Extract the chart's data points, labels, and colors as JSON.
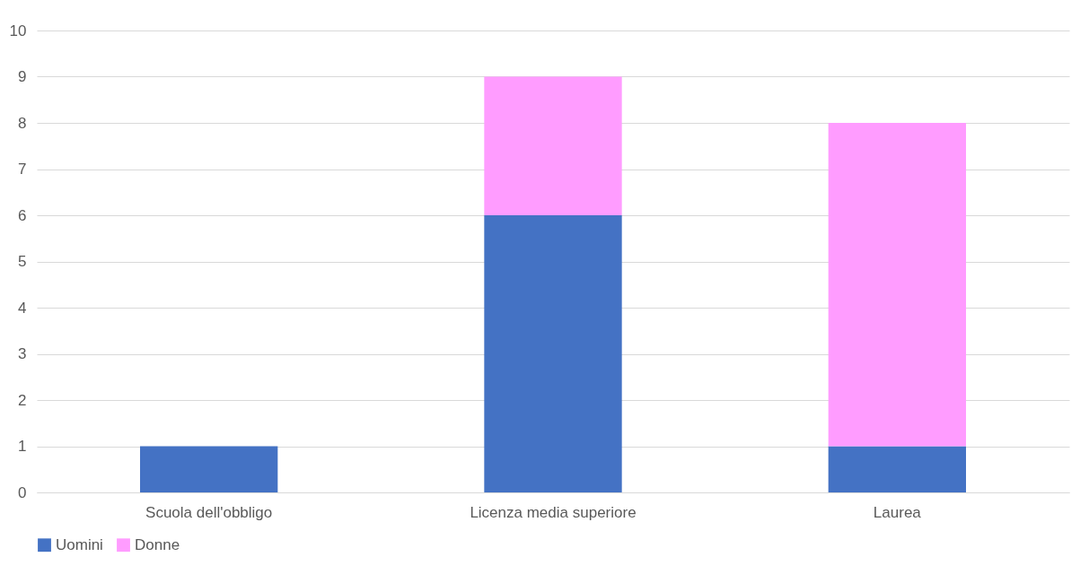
{
  "chart_data": {
    "type": "bar",
    "stacked": true,
    "categories": [
      "Scuola dell'obbligo",
      "Licenza media superiore",
      "Laurea"
    ],
    "series": [
      {
        "name": "Uomini",
        "color": "#4472c4",
        "values": [
          1,
          6,
          1
        ]
      },
      {
        "name": "Donne",
        "color": "#ff9cff",
        "values": [
          0,
          3,
          7
        ]
      }
    ],
    "ylim": [
      0,
      10
    ],
    "yticks": [
      0,
      1,
      2,
      3,
      4,
      5,
      6,
      7,
      8,
      9,
      10
    ],
    "grid": "y",
    "legend": "bottom"
  }
}
